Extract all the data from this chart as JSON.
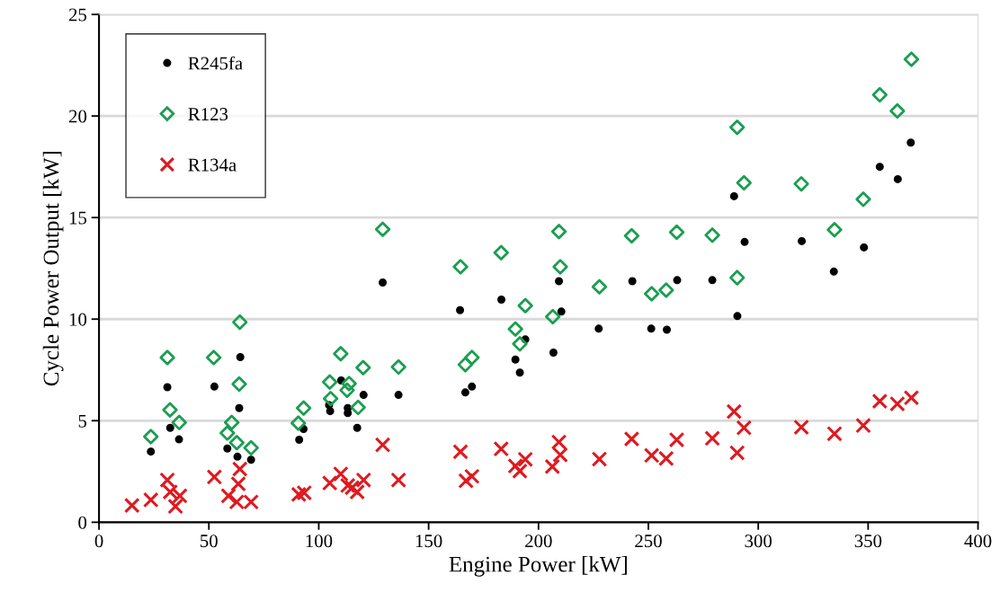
{
  "chart_data": {
    "type": "scatter",
    "xlabel": "Engine Power [kW]",
    "ylabel": "Cycle Power Output [kW]",
    "xlim": [
      0,
      400
    ],
    "xticks": [
      0,
      50,
      100,
      150,
      200,
      250,
      300,
      350,
      400
    ],
    "ylim": [
      0,
      25
    ],
    "yticks": [
      0,
      5,
      10,
      15,
      20,
      25
    ],
    "grid": "y",
    "legend": "top left",
    "series": [
      {
        "name": "R245fa",
        "color": "#000000",
        "marker": "circle",
        "x": [
          23.6,
          31.1,
          32.4,
          36.4,
          52.5,
          64.3,
          63.8,
          58.4,
          63,
          69.2,
          91.1,
          93.1,
          110.2,
          104.7,
          105.2,
          113.2,
          113.2,
          120.4,
          117.5,
          129.1,
          136.3,
          164.3,
          183.1,
          209.3,
          210.4,
          194,
          189.5,
          191.5,
          206.8,
          166.7,
          169.7,
          227.4,
          242.7,
          251.3,
          258.4,
          263.1,
          279.1,
          289,
          293.8,
          290.5,
          319.8,
          334.4,
          348.1,
          355.3,
          363.5,
          369.4
        ],
        "values": [
          3.48,
          6.65,
          4.65,
          4.08,
          6.68,
          8.13,
          5.62,
          3.63,
          3.23,
          3.08,
          4.06,
          4.59,
          6.98,
          5.77,
          5.47,
          5.62,
          5.38,
          6.27,
          4.65,
          11.8,
          6.27,
          10.44,
          10.96,
          11.87,
          10.37,
          9.0,
          8.01,
          7.37,
          8.35,
          6.39,
          6.68,
          9.53,
          11.87,
          9.53,
          9.48,
          11.92,
          11.92,
          16.05,
          13.8,
          10.15,
          13.84,
          12.34,
          13.53,
          17.5,
          16.89,
          18.69
        ]
      },
      {
        "name": "R123",
        "color": "#1a9e50",
        "marker": "diamond",
        "x": [
          23.6,
          31.1,
          32.3,
          36.5,
          52.2,
          64.1,
          63.8,
          60.4,
          58.4,
          62.7,
          69.2,
          90.7,
          93.1,
          105,
          105.4,
          110,
          113.8,
          112.9,
          117.9,
          120.2,
          129.1,
          136.3,
          164.5,
          183,
          209.3,
          209.9,
          194,
          206.5,
          189.5,
          191.5,
          169.7,
          166.7,
          227.7,
          242.4,
          251.5,
          258.1,
          262.9,
          279.1,
          293.5,
          290.4,
          290.4,
          319.6,
          334.7,
          347.8,
          355.3,
          363.3,
          369.7
        ],
        "values": [
          4.22,
          8.11,
          5.53,
          4.91,
          8.11,
          9.85,
          6.8,
          4.91,
          4.39,
          3.92,
          3.66,
          4.88,
          5.62,
          6.9,
          6.09,
          8.3,
          6.83,
          6.5,
          5.65,
          7.61,
          14.42,
          7.64,
          12.58,
          13.27,
          14.31,
          12.58,
          10.66,
          10.12,
          9.51,
          8.78,
          8.11,
          7.76,
          11.59,
          14.1,
          11.25,
          11.43,
          14.28,
          14.13,
          16.71,
          12.04,
          19.44,
          16.66,
          14.4,
          15.9,
          21.04,
          20.25,
          22.79
        ]
      },
      {
        "name": "R134a",
        "color": "#e0191f",
        "marker": "cross",
        "x": [
          15,
          23.6,
          31.1,
          32.4,
          36.8,
          34.8,
          52.5,
          64.1,
          63.4,
          58.9,
          62.7,
          69.2,
          90.9,
          93.4,
          105,
          110,
          113.2,
          115.2,
          117.5,
          120.4,
          129.1,
          136.3,
          164.5,
          183,
          209.3,
          209.9,
          194,
          189.5,
          191.5,
          206.3,
          167,
          169.7,
          227.7,
          242.4,
          251.5,
          258.1,
          262.9,
          279.1,
          289,
          290.4,
          293.5,
          319.6,
          334.7,
          347.8,
          355.3,
          363.3,
          369.7
        ],
        "values": [
          0.83,
          1.1,
          2.08,
          1.49,
          1.3,
          0.78,
          2.23,
          2.62,
          1.89,
          1.3,
          1.0,
          1.0,
          1.37,
          1.45,
          1.93,
          2.38,
          1.81,
          1.7,
          1.49,
          2.08,
          3.81,
          2.08,
          3.47,
          3.61,
          3.95,
          3.32,
          3.1,
          2.77,
          2.52,
          2.74,
          2.04,
          2.26,
          3.11,
          4.1,
          3.29,
          3.14,
          4.06,
          4.13,
          5.45,
          3.42,
          4.65,
          4.68,
          4.36,
          4.76,
          5.96,
          5.83,
          6.13
        ]
      }
    ]
  }
}
